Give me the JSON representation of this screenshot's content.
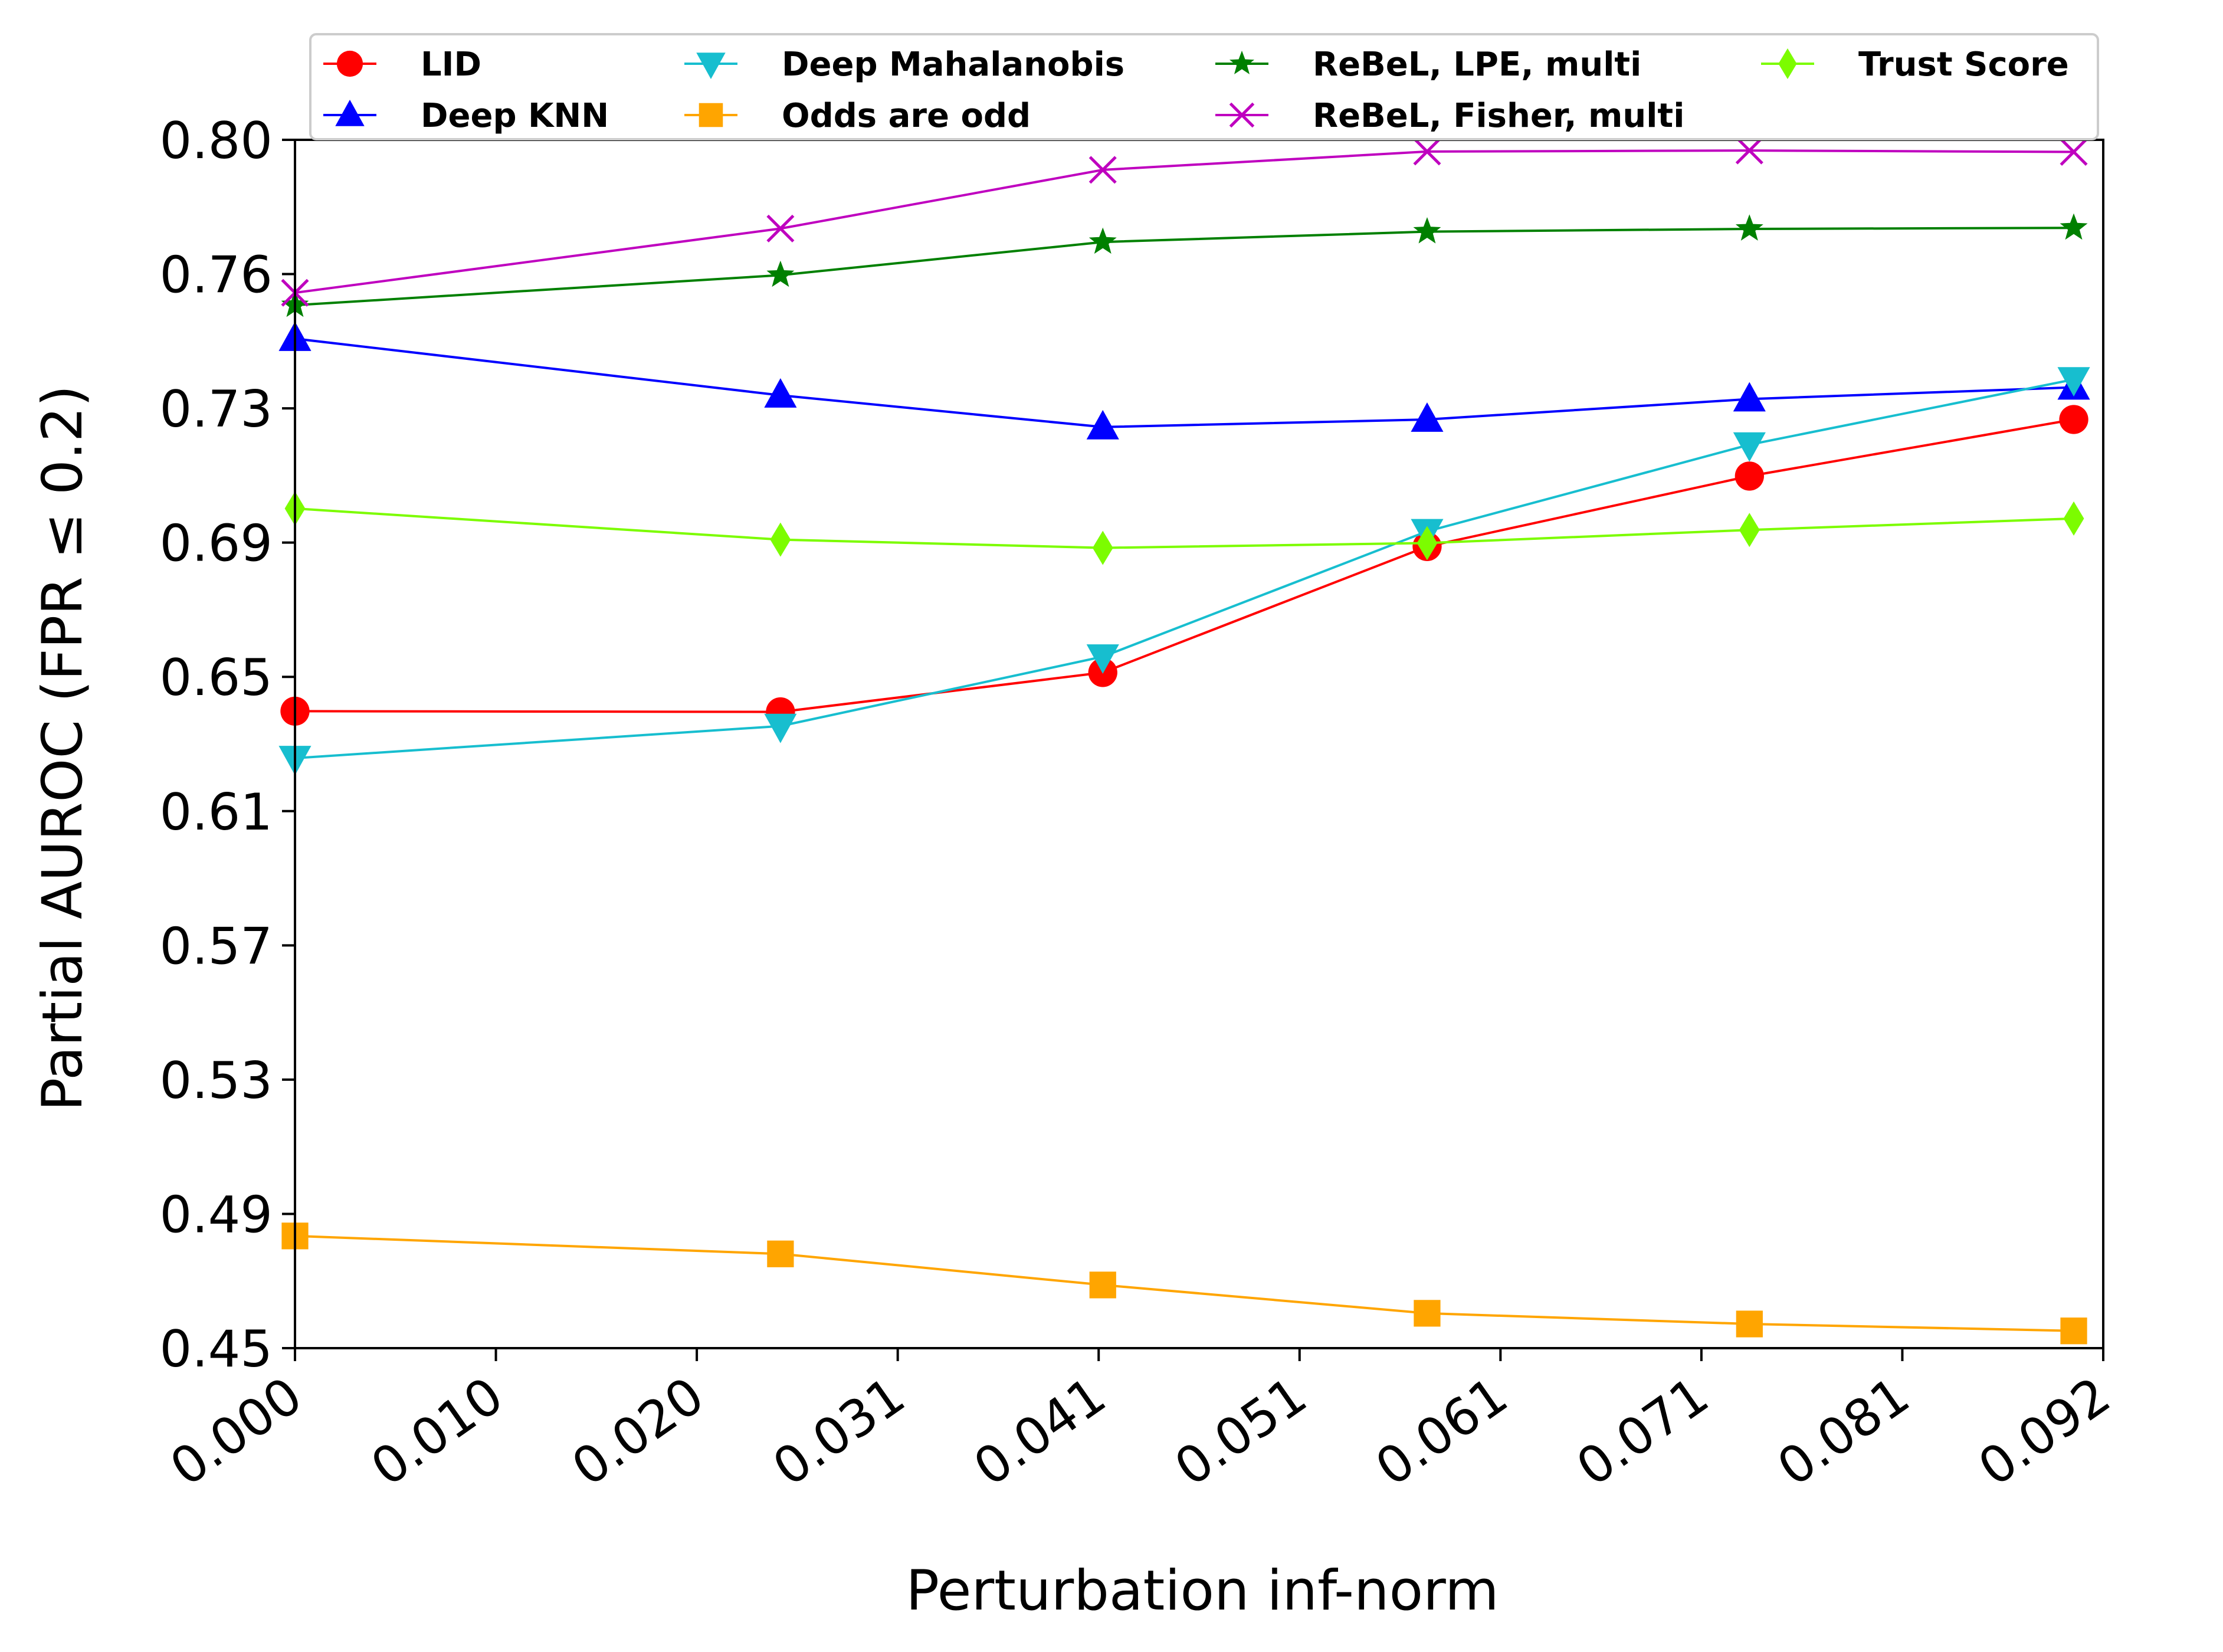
{
  "chart_data": {
    "type": "line",
    "xlabel": "Perturbation inf-norm",
    "ylabel": "Partial AUROC (FPR ≤ 0.2)",
    "xlim": [
      0.0,
      0.092
    ],
    "ylim": [
      0.45,
      0.8
    ],
    "x_ticks": [
      "0.000",
      "0.010",
      "0.020",
      "0.031",
      "0.041",
      "0.051",
      "0.061",
      "0.071",
      "0.081",
      "0.092"
    ],
    "y_ticks": [
      "0.45",
      "0.49",
      "0.53",
      "0.57",
      "0.61",
      "0.65",
      "0.69",
      "0.73",
      "0.76",
      "0.80"
    ],
    "x": [
      0.0,
      0.0247,
      0.0411,
      0.0576,
      0.074,
      0.0905
    ],
    "grid": false,
    "legend_position": "top",
    "series": [
      {
        "name": "LID",
        "color": "#ff0000",
        "marker": "circle",
        "values": [
          0.6345,
          0.6343,
          0.6457,
          0.6822,
          0.7026,
          0.719
        ]
      },
      {
        "name": "Deep KNN",
        "color": "#0000ff",
        "marker": "triangle-up",
        "values": [
          0.7424,
          0.726,
          0.7168,
          0.719,
          0.7249,
          0.7283
        ]
      },
      {
        "name": "Deep Mahalanobis",
        "color": "#17becf",
        "marker": "triangle-down",
        "values": [
          0.6209,
          0.6302,
          0.6503,
          0.6866,
          0.7117,
          0.7306
        ]
      },
      {
        "name": "Odds are odd",
        "color": "#ffa500",
        "marker": "square",
        "values": [
          0.4825,
          0.4773,
          0.4683,
          0.4601,
          0.457,
          0.455
        ]
      },
      {
        "name": "ReBeL, LPE, multi",
        "color": "#008000",
        "marker": "star",
        "values": [
          0.7521,
          0.7608,
          0.7704,
          0.7734,
          0.7742,
          0.7745
        ]
      },
      {
        "name": "ReBeL, Fisher, multi",
        "color": "#bf00bf",
        "marker": "x",
        "values": [
          0.7557,
          0.7743,
          0.7913,
          0.7966,
          0.7969,
          0.7965
        ]
      },
      {
        "name": "Trust Score",
        "color": "#7cfc00",
        "marker": "thin-diamond",
        "values": [
          0.6932,
          0.6842,
          0.6818,
          0.6832,
          0.687,
          0.6903
        ]
      }
    ]
  }
}
